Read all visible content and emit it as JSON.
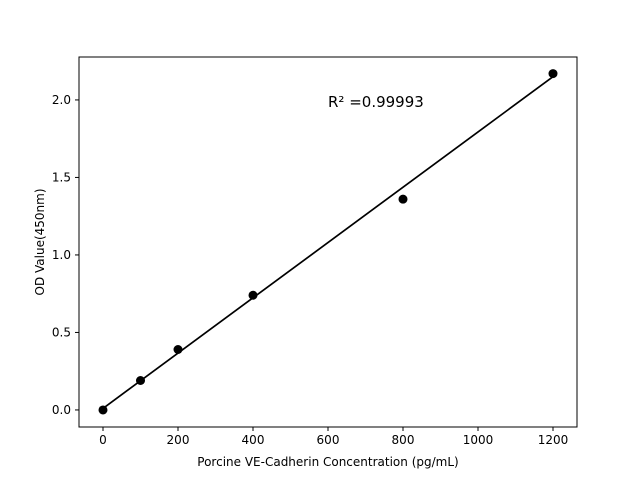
{
  "figure": {
    "background": "#ffffff",
    "axis_color": "#000000",
    "text_color": "#000000"
  },
  "chart_data": {
    "type": "scatter",
    "title": "",
    "xlabel": "Porcine VE-Cadherin Concentration (pg/mL)",
    "ylabel": "OD Value(450nm)",
    "annotation": "R² =0.99993",
    "x": [
      0,
      100,
      200,
      400,
      800,
      1200
    ],
    "y": [
      0.0,
      0.19,
      0.39,
      0.74,
      1.36,
      2.17
    ],
    "fit_line": {
      "x": [
        0,
        1200
      ],
      "y": [
        0.01,
        2.15
      ]
    },
    "x_ticks": [
      "0",
      "200",
      "400",
      "600",
      "800",
      "1000",
      "1200"
    ],
    "y_ticks": [
      "0.0",
      "0.5",
      "1.0",
      "1.5",
      "2.0"
    ],
    "xlim": [
      -64,
      1264
    ],
    "ylim": [
      -0.11,
      2.277
    ],
    "grid": false,
    "legend": null,
    "marker": {
      "shape": "circle",
      "color": "#000000",
      "size": 4.5
    },
    "line": {
      "color": "#000000",
      "width": 1.7
    }
  }
}
